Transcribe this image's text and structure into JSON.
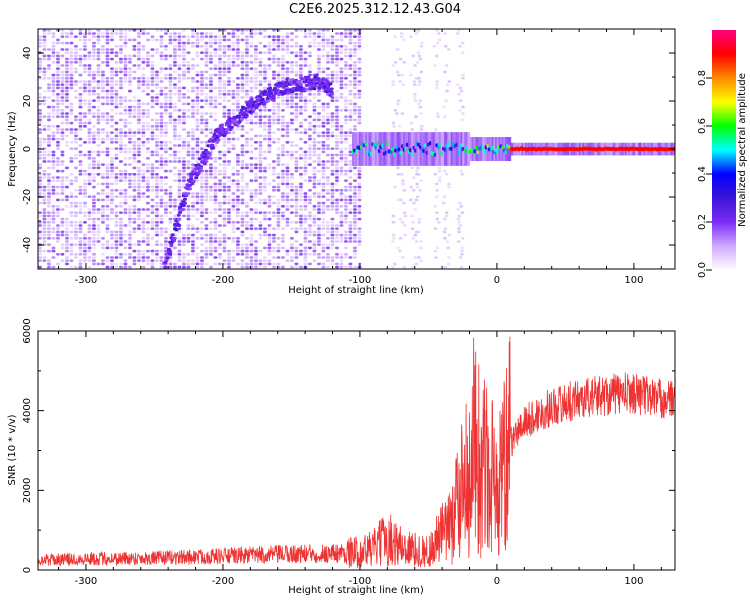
{
  "title": "C2E6.2025.312.12.43.G04",
  "chart_data": [
    {
      "type": "heatmap",
      "xlabel": "Height of straight line (km)",
      "ylabel": "Frequency (Hz)",
      "xlim": [
        -335,
        130
      ],
      "ylim": [
        -50,
        50
      ],
      "x_ticks": [
        -300,
        -200,
        -100,
        0,
        100
      ],
      "y_ticks": [
        -40,
        -20,
        0,
        20,
        40
      ],
      "colorbar": {
        "label": "Normalized spectral amplitude",
        "range": [
          0,
          1
        ],
        "ticks": [
          0.0,
          0.2,
          0.4,
          0.6,
          0.8
        ],
        "colormap": [
          "#ffffff",
          "#cfa9ff",
          "#7b2cf5",
          "#3c14d6",
          "#0000ff",
          "#00ffff",
          "#00ff00",
          "#ffff00",
          "#ff8800",
          "#ff0000",
          "#ff0080"
        ]
      },
      "features": {
        "noise_region_x": [
          -335,
          -100
        ],
        "diagonal_track": [
          [
            -243,
            -50
          ],
          [
            -225,
            -15
          ],
          [
            -205,
            5
          ],
          [
            -180,
            18
          ],
          [
            -155,
            26
          ],
          [
            -130,
            28
          ],
          [
            -120,
            24
          ]
        ],
        "carrier_line_y": 0,
        "carrier_start_x": -105
      }
    },
    {
      "type": "line",
      "xlabel": "Height of straight line (km)",
      "ylabel": "SNR (10 * v/v)",
      "xlim": [
        -335,
        130
      ],
      "ylim": [
        0,
        6000
      ],
      "x_ticks": [
        -300,
        -200,
        -100,
        0,
        100
      ],
      "y_ticks": [
        0,
        2000,
        4000,
        6000
      ],
      "color": "#ee3333",
      "series": [
        {
          "x": [
            -335,
            -300,
            -250,
            -200,
            -150,
            -120,
            -100,
            -90,
            -80,
            -70,
            -60,
            -50,
            -45,
            -40,
            -35,
            -30,
            -25,
            -20,
            -15,
            -10,
            -5,
            0,
            5,
            10,
            20,
            30,
            40,
            60,
            80,
            100,
            120,
            130
          ],
          "y": [
            250,
            280,
            300,
            350,
            400,
            420,
            450,
            550,
            800,
            600,
            500,
            450,
            700,
            900,
            1000,
            1600,
            2300,
            2700,
            3000,
            2800,
            2200,
            1800,
            2500,
            3200,
            3700,
            3900,
            4100,
            4300,
            4400,
            4450,
            4300,
            4250
          ]
        }
      ]
    }
  ]
}
